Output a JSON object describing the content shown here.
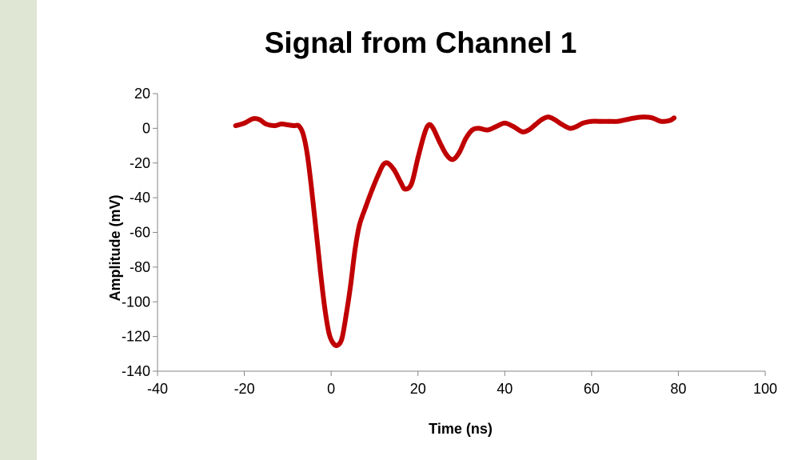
{
  "chart_data": {
    "type": "scatter",
    "title": "Signal from Channel 1",
    "xlabel": "Time (ns)",
    "ylabel": "Amplitude (mV)",
    "xlim": [
      -40,
      100
    ],
    "ylim": [
      -140,
      20
    ],
    "xticks": [
      -40,
      -20,
      0,
      20,
      40,
      60,
      80,
      100
    ],
    "yticks": [
      20,
      0,
      -20,
      -40,
      -60,
      -80,
      -100,
      -120,
      -140
    ],
    "grid": false,
    "legend": "none",
    "series": [
      {
        "color": "#c00000",
        "x": [
          -22,
          -20,
          -18,
          -16.5,
          -15,
          -13,
          -11.5,
          -10,
          -8.5,
          -7.5,
          -6.5,
          -5.5,
          -4.5,
          -3.5,
          -2.5,
          -1.5,
          -0.5,
          0.5,
          1.5,
          2.5,
          3.5,
          4.5,
          5.5,
          6.5,
          8,
          9.5,
          11,
          12,
          13,
          14.5,
          16,
          17,
          18.5,
          20,
          21.5,
          22.5,
          23.5,
          25,
          26.5,
          28,
          29.5,
          31,
          32.5,
          34,
          36,
          38,
          40,
          42,
          44,
          45.5,
          47,
          48.5,
          50,
          51.5,
          53,
          55,
          56.5,
          58,
          60,
          62,
          64,
          66,
          68,
          70,
          72,
          74,
          76,
          78,
          79
        ],
        "y": [
          1.5,
          3,
          5.5,
          5,
          2.5,
          1.5,
          2.5,
          2,
          1.5,
          1.5,
          -3,
          -15,
          -35,
          -58,
          -82,
          -103,
          -118,
          -124,
          -125,
          -121,
          -107,
          -90,
          -70,
          -56,
          -45,
          -35,
          -26,
          -21,
          -20,
          -24,
          -31,
          -35,
          -32,
          -17,
          -3,
          2,
          0,
          -8,
          -15,
          -18,
          -14,
          -6,
          -1,
          0,
          -1,
          1,
          3,
          1,
          -2,
          -1,
          2,
          5,
          6.5,
          5,
          2.5,
          0,
          1,
          3,
          4,
          4,
          4,
          4,
          5,
          6,
          6.5,
          6,
          4,
          4.5,
          6
        ]
      }
    ]
  }
}
